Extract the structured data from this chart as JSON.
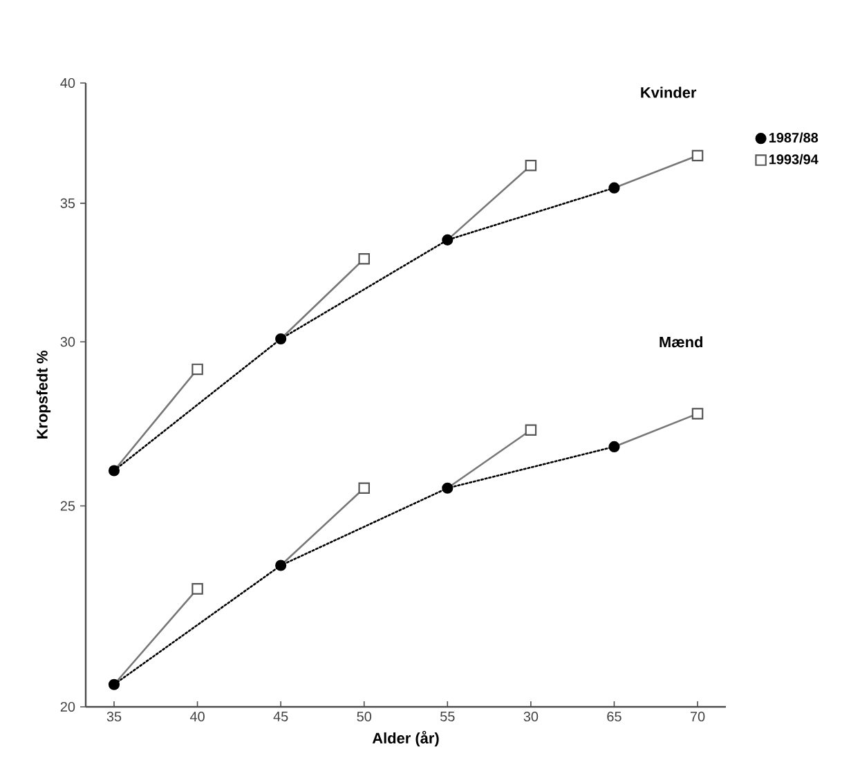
{
  "chart_data": {
    "type": "line",
    "xlabel": "Alder (år)",
    "ylabel": "Kropsfedt %",
    "log": "y",
    "ylim": [
      20,
      40
    ],
    "categories": [
      "35",
      "40",
      "45",
      "50",
      "55",
      "30",
      "65",
      "70"
    ],
    "yticks": [
      20,
      25,
      30,
      35,
      40
    ],
    "legend": "right",
    "annotations": [
      "Kvinder",
      "Mænd"
    ],
    "series": [
      {
        "values": [
          26.0,
          29.1,
          null,
          null,
          null,
          null,
          null,
          null
        ],
        "color": "#777777",
        "marker": "none",
        "line_style": "solid"
      },
      {
        "values": [
          null,
          null,
          30.1,
          32.9,
          null,
          null,
          null,
          null
        ],
        "color": "#777777",
        "marker": "none",
        "line_style": "solid"
      },
      {
        "values": [
          null,
          null,
          null,
          null,
          33.6,
          36.5,
          null,
          null
        ],
        "color": "#777777",
        "marker": "none",
        "line_style": "solid"
      },
      {
        "values": [
          null,
          null,
          null,
          null,
          null,
          null,
          35.6,
          36.9
        ],
        "color": "#777777",
        "marker": "none",
        "line_style": "solid"
      },
      {
        "values": [
          20.5,
          22.8,
          null,
          null,
          null,
          null,
          null,
          null
        ],
        "color": "#777777",
        "marker": "none",
        "line_style": "solid"
      },
      {
        "values": [
          null,
          null,
          23.4,
          25.5,
          null,
          null,
          null,
          null
        ],
        "color": "#777777",
        "marker": "none",
        "line_style": "solid"
      },
      {
        "values": [
          null,
          null,
          null,
          null,
          25.5,
          27.2,
          null,
          null
        ],
        "color": "#777777",
        "marker": "none",
        "line_style": "solid"
      },
      {
        "values": [
          null,
          null,
          null,
          null,
          null,
          null,
          26.7,
          27.7
        ],
        "color": "#777777",
        "marker": "none",
        "line_style": "solid"
      },
      {
        "name": "1987/88",
        "values": [
          26.0,
          null,
          30.1,
          null,
          33.6,
          null,
          35.6,
          null
        ],
        "color": "#000000",
        "marker": "circle",
        "line_style": "dotted"
      },
      {
        "name": "1993/94",
        "type": "scatter",
        "values": [
          null,
          29.1,
          null,
          32.9,
          null,
          36.5,
          null,
          36.9
        ],
        "color": "#555555",
        "marker": "square"
      },
      {
        "values": [
          20.5,
          null,
          23.4,
          null,
          25.5,
          null,
          26.7,
          null
        ],
        "color": "#000000",
        "marker": "circle",
        "line_style": "dotted"
      },
      {
        "type": "scatter",
        "values": [
          null,
          22.8,
          null,
          25.5,
          null,
          27.2,
          null,
          27.7
        ],
        "color": "#555555",
        "marker": "square"
      }
    ]
  }
}
